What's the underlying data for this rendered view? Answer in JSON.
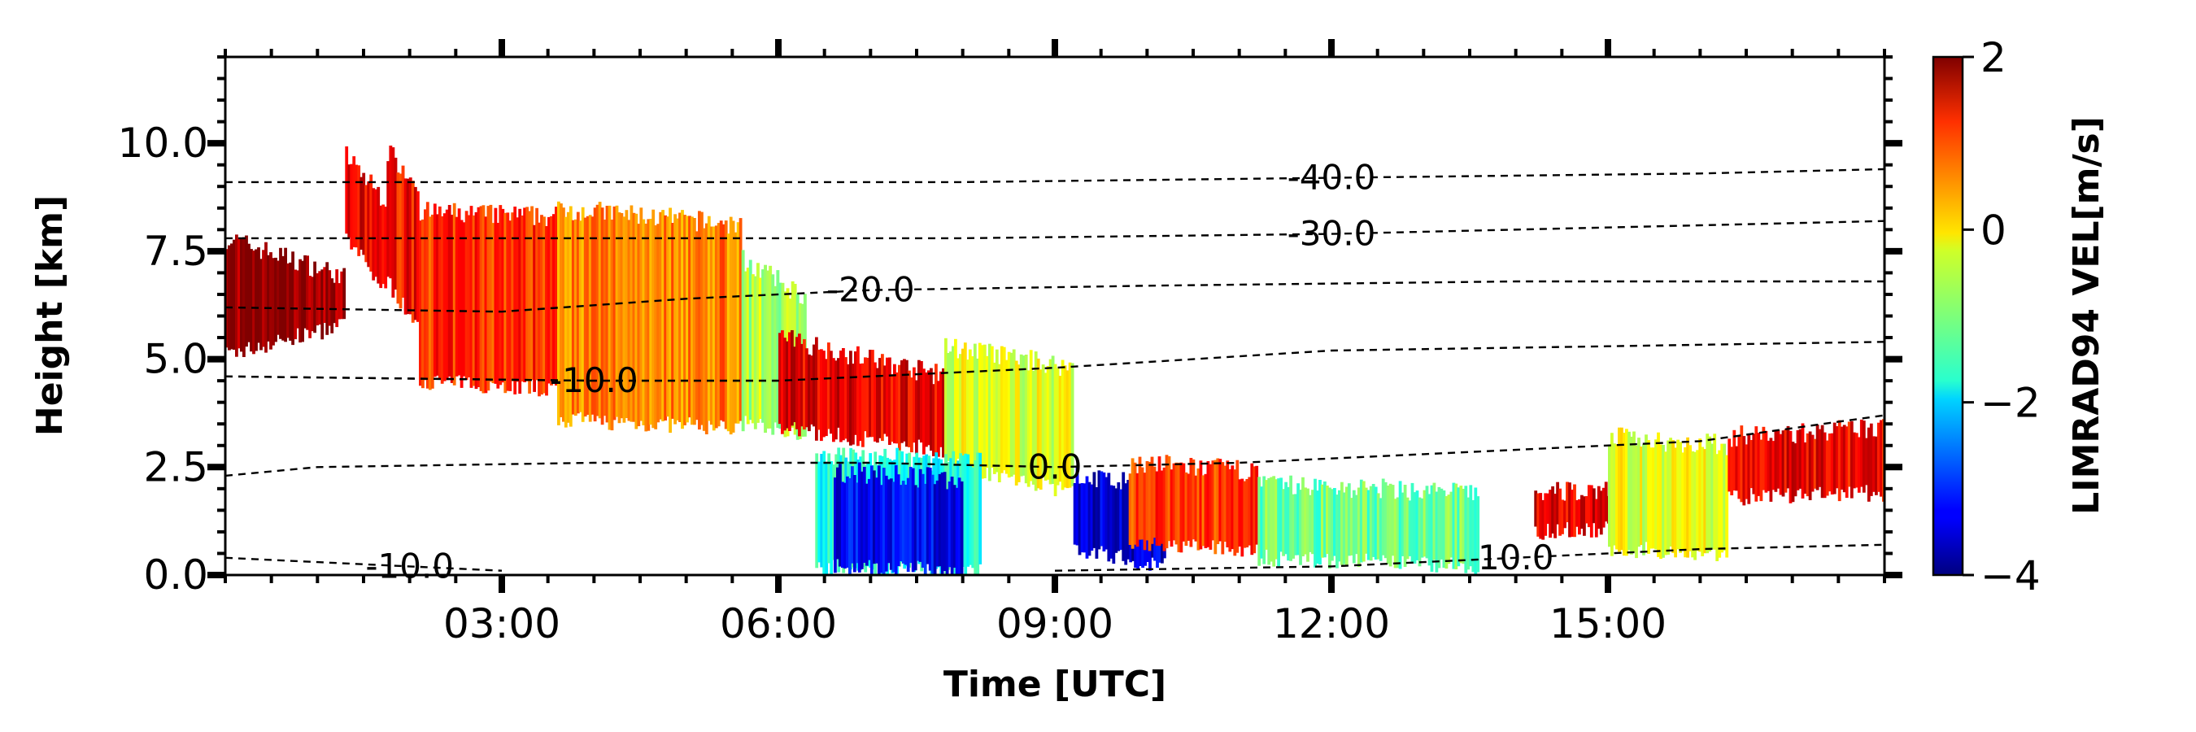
{
  "chart_data": {
    "type": "heatmap",
    "title": "",
    "xlabel": "Time [UTC]",
    "ylabel": "Height [km]",
    "xlim": [
      0,
      18
    ],
    "ylim": [
      0,
      12
    ],
    "x_ticks": [
      3,
      6,
      9,
      12,
      15
    ],
    "x_tick_labels": [
      "03:00",
      "06:00",
      "09:00",
      "12:00",
      "15:00"
    ],
    "y_ticks": [
      0,
      2.5,
      5,
      7.5,
      10
    ],
    "y_tick_labels": [
      "0.0",
      "2.5",
      "5.0",
      "7.5",
      "10.0"
    ],
    "colorbar": {
      "label": "LIMRAD94 VEL[m/s]",
      "colormap": "jet",
      "vmin": -4,
      "vmax": 2,
      "ticks": [
        -4,
        -2,
        0,
        2
      ],
      "tick_labels": [
        "−4",
        "−2",
        "0",
        "2"
      ]
    },
    "echo_regions": [
      {
        "time": [
          0.0,
          1.3
        ],
        "top": [
          7.8,
          6.9
        ],
        "base": [
          5.1,
          5.8
        ],
        "vel": 1.9
      },
      {
        "time": [
          1.3,
          1.75
        ],
        "top": [
          9.7,
          8.6
        ],
        "base": [
          7.8,
          6.5
        ],
        "vel": 1.3
      },
      {
        "time": [
          1.75,
          2.1
        ],
        "top": [
          9.8,
          9.0
        ],
        "base": [
          6.8,
          5.6
        ],
        "vel": 1.2
      },
      {
        "time": [
          2.1,
          3.6
        ],
        "top": [
          8.4,
          8.3
        ],
        "base": [
          4.5,
          4.3
        ],
        "vel": 1.0
      },
      {
        "time": [
          3.6,
          5.6
        ],
        "top": [
          8.5,
          8.1
        ],
        "base": [
          3.6,
          3.4
        ],
        "vel": 0.5
      },
      {
        "time": [
          5.6,
          6.3
        ],
        "top": [
          7.3,
          6.4
        ],
        "base": [
          3.5,
          3.3
        ],
        "vel": -0.7
      },
      {
        "time": [
          6.0,
          7.8
        ],
        "top": [
          5.5,
          4.6
        ],
        "base": [
          3.4,
          2.9
        ],
        "vel": 1.4
      },
      {
        "time": [
          7.8,
          9.2
        ],
        "top": [
          5.3,
          4.8
        ],
        "base": [
          2.6,
          1.9
        ],
        "vel": -0.4
      },
      {
        "time": [
          6.4,
          8.2
        ],
        "top": [
          2.8,
          2.6
        ],
        "base": [
          0.2,
          0.1
        ],
        "vel": -1.6
      },
      {
        "time": [
          6.6,
          8.0
        ],
        "top": [
          2.4,
          2.2
        ],
        "base": [
          0.2,
          0.1
        ],
        "vel": -3.3
      },
      {
        "time": [
          9.2,
          10.2
        ],
        "top": [
          2.3,
          2.0
        ],
        "base": [
          0.6,
          0.2
        ],
        "vel": -3.5
      },
      {
        "time": [
          9.8,
          11.2
        ],
        "top": [
          2.6,
          2.4
        ],
        "base": [
          0.7,
          0.6
        ],
        "vel": 0.9
      },
      {
        "time": [
          11.2,
          13.6
        ],
        "top": [
          2.1,
          1.9
        ],
        "base": [
          0.4,
          0.2
        ],
        "vel": -1.1
      },
      {
        "time": [
          14.2,
          15.2
        ],
        "top": [
          1.9,
          2.0
        ],
        "base": [
          1.0,
          1.1
        ],
        "vel": 1.4
      },
      {
        "time": [
          15.0,
          16.3
        ],
        "top": [
          3.2,
          3.0
        ],
        "base": [
          0.6,
          0.5
        ],
        "vel": -0.4
      },
      {
        "time": [
          16.3,
          18.0
        ],
        "top": [
          3.2,
          3.4
        ],
        "base": [
          1.8,
          1.9
        ],
        "vel": 1.3
      }
    ],
    "isotherms": [
      {
        "label": "-40.0",
        "points": [
          [
            0,
            9.1
          ],
          [
            4,
            9.1
          ],
          [
            8,
            9.1
          ],
          [
            12,
            9.2
          ],
          [
            16,
            9.3
          ],
          [
            18,
            9.4
          ]
        ]
      },
      {
        "label": "-30.0",
        "points": [
          [
            0,
            7.8
          ],
          [
            4,
            7.8
          ],
          [
            8,
            7.8
          ],
          [
            12,
            7.9
          ],
          [
            16,
            8.1
          ],
          [
            18,
            8.2
          ]
        ]
      },
      {
        "label": "-20.0",
        "points": [
          [
            0,
            6.2
          ],
          [
            3,
            6.1
          ],
          [
            5,
            6.4
          ],
          [
            7,
            6.6
          ],
          [
            10,
            6.7
          ],
          [
            14,
            6.8
          ],
          [
            18,
            6.8
          ]
        ]
      },
      {
        "label": "",
        "points": [
          [
            0,
            4.6
          ],
          [
            4,
            4.5
          ],
          [
            6,
            4.5
          ],
          [
            9,
            4.8
          ],
          [
            12,
            5.2
          ],
          [
            15,
            5.3
          ],
          [
            18,
            5.4
          ]
        ]
      },
      {
        "label": "-10.0",
        "points": [
          [
            0,
            4.6
          ],
          [
            4,
            4.5
          ],
          [
            6,
            4.5
          ]
        ]
      },
      {
        "label": "0.0",
        "points": [
          [
            0,
            2.3
          ],
          [
            1,
            2.5
          ],
          [
            4,
            2.6
          ],
          [
            7,
            2.6
          ],
          [
            9,
            2.5
          ],
          [
            11,
            2.6
          ],
          [
            13,
            2.8
          ],
          [
            16,
            3.1
          ],
          [
            18,
            3.7
          ]
        ]
      },
      {
        "label": "-10.0",
        "points": [
          [
            0,
            0.4
          ],
          [
            1,
            0.3
          ],
          [
            2,
            0.2
          ],
          [
            3,
            0.1
          ]
        ]
      },
      {
        "label": "10.0",
        "points": [
          [
            9,
            0.1
          ],
          [
            12,
            0.2
          ],
          [
            14,
            0.4
          ],
          [
            16,
            0.6
          ],
          [
            18,
            0.7
          ]
        ]
      }
    ]
  }
}
